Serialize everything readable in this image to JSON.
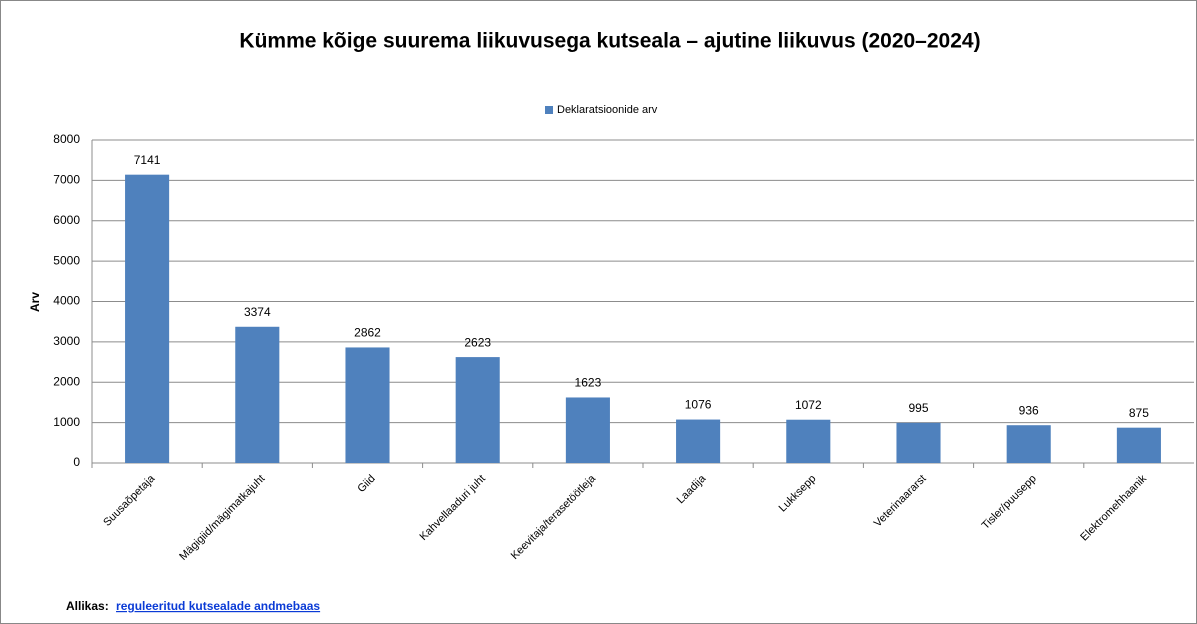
{
  "chart_data": {
    "type": "bar",
    "title": "Kümme kõige suurema liikuvusega kutseala – ajutine liikuvus (2020–2024)",
    "y_label": "Arv",
    "categories": [
      "Suusaõpetaja",
      "Mägigiid/mägimatkajuht",
      "Giid",
      "Kahvellaaduri juht",
      "Keevitaja/terasetöötleja",
      "Laadija",
      "Lukksepp",
      "Veterinaararst",
      "Tisler/puusepp",
      "Elektromehhaanik"
    ],
    "series": [
      {
        "name": "Deklaratsioonide arv",
        "color": "#4f81bd",
        "values": [
          7141,
          3374,
          2862,
          2623,
          1623,
          1076,
          1072,
          995,
          936,
          875
        ]
      }
    ],
    "ylim": [
      0,
      8000
    ],
    "yticks": [
      0,
      1000,
      2000,
      3000,
      4000,
      5000,
      6000,
      7000,
      8000
    ],
    "grid": true,
    "legend": "top",
    "source_label": "Allikas:",
    "source_link": "reguleeritud kutsealade andmebaas"
  }
}
